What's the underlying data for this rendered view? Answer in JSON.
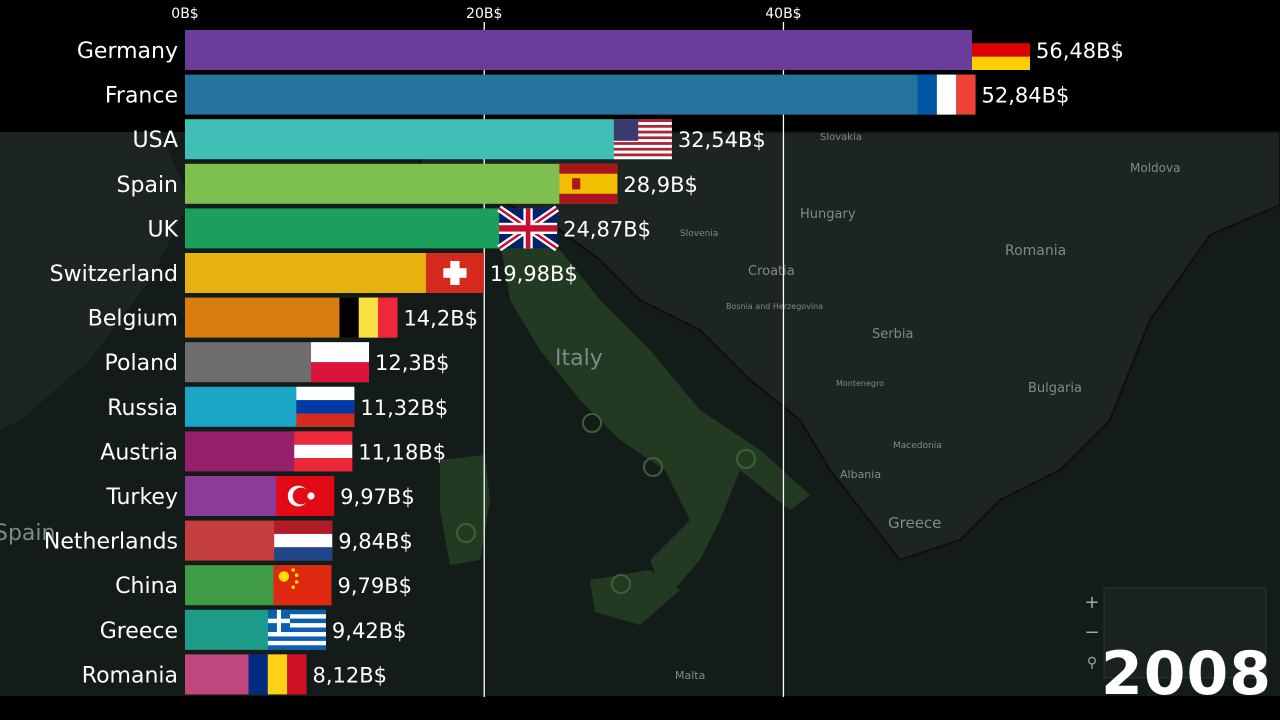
{
  "map": {
    "labels": [
      "Italy",
      "Croatia",
      "Bosnia and Herzegovina",
      "Serbia",
      "Hungary",
      "Romania",
      "Moldova",
      "Bulgaria",
      "Greece",
      "Albania",
      "Macedonia",
      "Montenegro",
      "Malta",
      "Slovakia",
      "Slovenia",
      "Spain"
    ],
    "water_color": "#141c1a",
    "land_color": "#1d2522",
    "italy_color": "#233a22"
  },
  "year": "2008",
  "chart_data": {
    "type": "bar",
    "orientation": "horizontal",
    "unit_suffix": "B$",
    "xlim": [
      0,
      56.48
    ],
    "ticks": [
      0,
      20,
      40
    ],
    "tick_labels": [
      "0B$",
      "20B$",
      "40B$"
    ],
    "grid": true,
    "categories": [
      "Germany",
      "France",
      "USA",
      "Spain",
      "UK",
      "Switzerland",
      "Belgium",
      "Poland",
      "Russia",
      "Austria",
      "Turkey",
      "Netherlands",
      "China",
      "Greece",
      "Romania"
    ],
    "values": [
      56.48,
      52.84,
      32.54,
      28.9,
      24.87,
      19.98,
      14.2,
      12.3,
      11.32,
      11.18,
      9.97,
      9.84,
      9.79,
      9.42,
      8.12
    ],
    "value_labels": [
      "56,48B$",
      "52,84B$",
      "32,54B$",
      "28,9B$",
      "24,87B$",
      "19,98B$",
      "14,2B$",
      "12,3B$",
      "11,32B$",
      "11,18B$",
      "9,97B$",
      "9,84B$",
      "9,79B$",
      "9,42B$",
      "8,12B$"
    ],
    "colors": [
      "#6a3d9a",
      "#2574a0",
      "#3fbfb5",
      "#7dc04f",
      "#1a9f5c",
      "#e6b20f",
      "#d97d0f",
      "#6e6e6e",
      "#1aa6c4",
      "#96206a",
      "#8d3b98",
      "#c43e3e",
      "#3f9b45",
      "#1e9c8a",
      "#c0477e"
    ],
    "flags": [
      "germany",
      "france",
      "usa",
      "spain",
      "uk",
      "switzerland",
      "belgium",
      "poland",
      "russia",
      "austria",
      "turkey",
      "netherlands",
      "china",
      "greece",
      "romania"
    ]
  }
}
